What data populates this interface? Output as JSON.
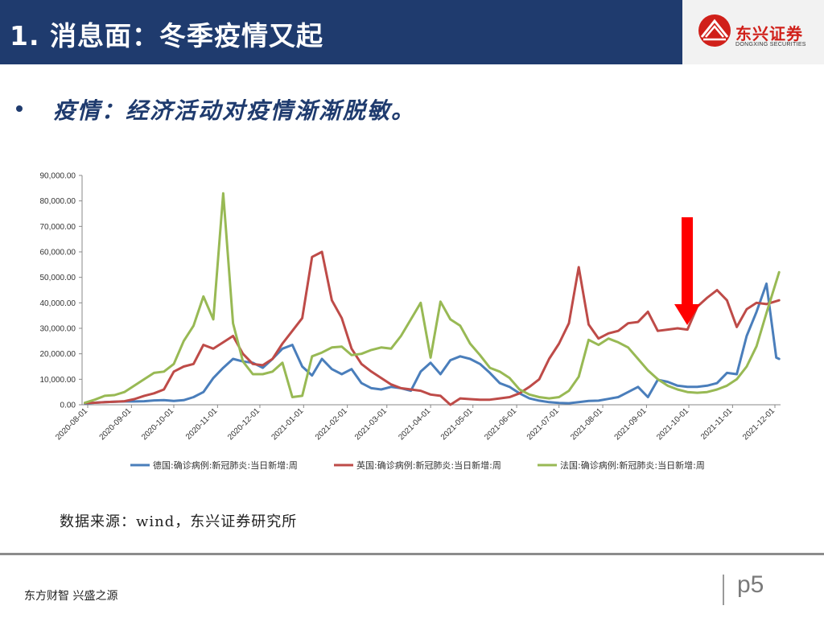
{
  "header": {
    "title": "1. 消息面：冬季疫情又起",
    "logo_cn": "东兴证券",
    "logo_en": "DONGXING SECURITIES"
  },
  "bullet": {
    "text": "疫情：经济活动对疫情渐渐脱敏。"
  },
  "source": "数据来源：wind，东兴证券研究所",
  "footer": {
    "slogan": "东方财智 兴盛之源",
    "page": "p5"
  },
  "colors": {
    "header_bg": "#1f3b6e",
    "germany": "#4a7ebb",
    "uk": "#be4b48",
    "france": "#98b954",
    "arrow": "#ff0000",
    "logo_red": "#d0201a"
  },
  "chart_data": {
    "type": "line",
    "ylim": [
      0,
      90000
    ],
    "yticks": [
      0,
      10000,
      20000,
      30000,
      40000,
      50000,
      60000,
      70000,
      80000,
      90000
    ],
    "ytick_labels": [
      "0.00",
      "10,000.00",
      "20,000.00",
      "30,000.00",
      "40,000.00",
      "50,000.00",
      "60,000.00",
      "70,000.00",
      "80,000.00",
      "90,000.00"
    ],
    "xtick_labels": [
      "2020-08-01",
      "2020-09-01",
      "2020-10-01",
      "2020-11-01",
      "2020-12-01",
      "2021-01-01",
      "2021-02-01",
      "2021-03-01",
      "2021-04-01",
      "2021-05-01",
      "2021-06-01",
      "2021-07-01",
      "2021-08-01",
      "2021-09-01",
      "2021-10-01",
      "2021-11-01",
      "2021-12-01"
    ],
    "x_range": [
      "2020-07-28",
      "2021-12-05"
    ],
    "legend_position": "bottom",
    "annotation": {
      "type": "arrow",
      "date": "2021-10-01",
      "direction": "down",
      "color": "#ff0000"
    },
    "series": [
      {
        "name": "德国:确诊病例:新冠肺炎:当日新增:周",
        "color": "#4a7ebb",
        "points": [
          [
            "2020-07-30",
            500
          ],
          [
            "2020-08-06",
            800
          ],
          [
            "2020-08-13",
            1000
          ],
          [
            "2020-08-20",
            1200
          ],
          [
            "2020-08-27",
            1300
          ],
          [
            "2020-09-03",
            1300
          ],
          [
            "2020-09-10",
            1400
          ],
          [
            "2020-09-17",
            1700
          ],
          [
            "2020-09-24",
            1800
          ],
          [
            "2020-10-01",
            1500
          ],
          [
            "2020-10-08",
            1800
          ],
          [
            "2020-10-15",
            3000
          ],
          [
            "2020-10-22",
            5000
          ],
          [
            "2020-10-29",
            10500
          ],
          [
            "2020-11-05",
            14500
          ],
          [
            "2020-11-12",
            18000
          ],
          [
            "2020-11-19",
            17000
          ],
          [
            "2020-11-26",
            16500
          ],
          [
            "2020-12-03",
            14500
          ],
          [
            "2020-12-10",
            18000
          ],
          [
            "2020-12-17",
            22000
          ],
          [
            "2020-12-24",
            23500
          ],
          [
            "2020-12-31",
            15000
          ],
          [
            "2021-01-07",
            11500
          ],
          [
            "2021-01-14",
            18000
          ],
          [
            "2021-01-21",
            14000
          ],
          [
            "2021-01-28",
            12000
          ],
          [
            "2021-02-04",
            14000
          ],
          [
            "2021-02-11",
            8500
          ],
          [
            "2021-02-18",
            6500
          ],
          [
            "2021-02-25",
            6000
          ],
          [
            "2021-03-04",
            7000
          ],
          [
            "2021-03-11",
            6500
          ],
          [
            "2021-03-18",
            5500
          ],
          [
            "2021-03-25",
            13000
          ],
          [
            "2021-04-01",
            16500
          ],
          [
            "2021-04-08",
            12000
          ],
          [
            "2021-04-15",
            17500
          ],
          [
            "2021-04-22",
            19000
          ],
          [
            "2021-04-29",
            18000
          ],
          [
            "2021-05-06",
            16000
          ],
          [
            "2021-05-13",
            12500
          ],
          [
            "2021-05-20",
            8500
          ],
          [
            "2021-05-27",
            7000
          ],
          [
            "2021-06-03",
            4500
          ],
          [
            "2021-06-10",
            2500
          ],
          [
            "2021-06-17",
            1600
          ],
          [
            "2021-06-24",
            1000
          ],
          [
            "2021-07-01",
            700
          ],
          [
            "2021-07-08",
            600
          ],
          [
            "2021-07-15",
            1000
          ],
          [
            "2021-07-22",
            1500
          ],
          [
            "2021-07-29",
            1600
          ],
          [
            "2021-08-05",
            2300
          ],
          [
            "2021-08-12",
            3000
          ],
          [
            "2021-08-19",
            5000
          ],
          [
            "2021-08-26",
            7000
          ],
          [
            "2021-09-02",
            3000
          ],
          [
            "2021-09-09",
            9800
          ],
          [
            "2021-09-16",
            9000
          ],
          [
            "2021-09-23",
            7500
          ],
          [
            "2021-09-30",
            7000
          ],
          [
            "2021-10-07",
            7000
          ],
          [
            "2021-10-14",
            7500
          ],
          [
            "2021-10-21",
            8500
          ],
          [
            "2021-10-28",
            12500
          ],
          [
            "2021-11-04",
            12000
          ],
          [
            "2021-11-11",
            27000
          ],
          [
            "2021-11-18",
            36500
          ],
          [
            "2021-11-25",
            47500
          ],
          [
            "2021-12-02",
            18500
          ],
          [
            "2021-12-04",
            18000
          ]
        ]
      },
      {
        "name": "英国:确诊病例:新冠肺炎:当日新增:周",
        "color": "#be4b48",
        "points": [
          [
            "2020-07-30",
            700
          ],
          [
            "2020-08-06",
            800
          ],
          [
            "2020-08-13",
            1000
          ],
          [
            "2020-08-20",
            1200
          ],
          [
            "2020-08-27",
            1400
          ],
          [
            "2020-09-03",
            2200
          ],
          [
            "2020-09-10",
            3500
          ],
          [
            "2020-09-17",
            4500
          ],
          [
            "2020-09-24",
            6000
          ],
          [
            "2020-10-01",
            13000
          ],
          [
            "2020-10-08",
            15000
          ],
          [
            "2020-10-15",
            16000
          ],
          [
            "2020-10-22",
            23500
          ],
          [
            "2020-10-29",
            22000
          ],
          [
            "2020-11-05",
            24500
          ],
          [
            "2020-11-12",
            27000
          ],
          [
            "2020-11-19",
            20000
          ],
          [
            "2020-11-26",
            16000
          ],
          [
            "2020-12-03",
            15500
          ],
          [
            "2020-12-10",
            18000
          ],
          [
            "2020-12-17",
            24000
          ],
          [
            "2020-12-24",
            29000
          ],
          [
            "2020-12-31",
            34000
          ],
          [
            "2021-01-07",
            58000
          ],
          [
            "2021-01-14",
            60000
          ],
          [
            "2021-01-21",
            41000
          ],
          [
            "2021-01-28",
            34000
          ],
          [
            "2021-02-04",
            22000
          ],
          [
            "2021-02-11",
            16000
          ],
          [
            "2021-02-18",
            13000
          ],
          [
            "2021-02-25",
            10500
          ],
          [
            "2021-03-04",
            8000
          ],
          [
            "2021-03-11",
            6500
          ],
          [
            "2021-03-18",
            6000
          ],
          [
            "2021-03-25",
            5500
          ],
          [
            "2021-04-01",
            4000
          ],
          [
            "2021-04-08",
            3500
          ],
          [
            "2021-04-15",
            0
          ],
          [
            "2021-04-22",
            2500
          ],
          [
            "2021-04-29",
            2200
          ],
          [
            "2021-05-06",
            2000
          ],
          [
            "2021-05-13",
            2000
          ],
          [
            "2021-05-20",
            2500
          ],
          [
            "2021-05-27",
            3000
          ],
          [
            "2021-06-03",
            4500
          ],
          [
            "2021-06-10",
            7000
          ],
          [
            "2021-06-17",
            10000
          ],
          [
            "2021-06-24",
            18000
          ],
          [
            "2021-07-01",
            24000
          ],
          [
            "2021-07-08",
            32000
          ],
          [
            "2021-07-15",
            54000
          ],
          [
            "2021-07-22",
            31500
          ],
          [
            "2021-07-29",
            26000
          ],
          [
            "2021-08-05",
            28000
          ],
          [
            "2021-08-12",
            29000
          ],
          [
            "2021-08-19",
            32000
          ],
          [
            "2021-08-26",
            32500
          ],
          [
            "2021-09-02",
            36500
          ],
          [
            "2021-09-09",
            29000
          ],
          [
            "2021-09-16",
            29500
          ],
          [
            "2021-09-23",
            30000
          ],
          [
            "2021-09-30",
            29500
          ],
          [
            "2021-10-07",
            38500
          ],
          [
            "2021-10-14",
            42000
          ],
          [
            "2021-10-21",
            45000
          ],
          [
            "2021-10-28",
            41000
          ],
          [
            "2021-11-04",
            30500
          ],
          [
            "2021-11-11",
            37500
          ],
          [
            "2021-11-18",
            40000
          ],
          [
            "2021-11-25",
            39500
          ],
          [
            "2021-12-04",
            41000
          ]
        ]
      },
      {
        "name": "法国:确诊病例:新冠肺炎:当日新增:周",
        "color": "#98b954",
        "points": [
          [
            "2020-07-30",
            800
          ],
          [
            "2020-08-06",
            2000
          ],
          [
            "2020-08-13",
            3500
          ],
          [
            "2020-08-20",
            3800
          ],
          [
            "2020-08-27",
            5000
          ],
          [
            "2020-09-03",
            7500
          ],
          [
            "2020-09-10",
            10000
          ],
          [
            "2020-09-17",
            12500
          ],
          [
            "2020-09-24",
            13000
          ],
          [
            "2020-10-01",
            16000
          ],
          [
            "2020-10-08",
            25000
          ],
          [
            "2020-10-15",
            31000
          ],
          [
            "2020-10-22",
            42500
          ],
          [
            "2020-10-29",
            33500
          ],
          [
            "2020-11-05",
            83000
          ],
          [
            "2020-11-12",
            32000
          ],
          [
            "2020-11-19",
            17000
          ],
          [
            "2020-11-26",
            12000
          ],
          [
            "2020-12-03",
            12000
          ],
          [
            "2020-12-10",
            13000
          ],
          [
            "2020-12-17",
            16500
          ],
          [
            "2020-12-24",
            3000
          ],
          [
            "2020-12-31",
            3500
          ],
          [
            "2021-01-07",
            19000
          ],
          [
            "2021-01-14",
            20500
          ],
          [
            "2021-01-21",
            22500
          ],
          [
            "2021-01-28",
            22800
          ],
          [
            "2021-02-04",
            19500
          ],
          [
            "2021-02-11",
            20000
          ],
          [
            "2021-02-18",
            21500
          ],
          [
            "2021-02-25",
            22500
          ],
          [
            "2021-03-04",
            22000
          ],
          [
            "2021-03-11",
            27000
          ],
          [
            "2021-03-18",
            33500
          ],
          [
            "2021-03-25",
            40000
          ],
          [
            "2021-04-01",
            18500
          ],
          [
            "2021-04-08",
            40500
          ],
          [
            "2021-04-15",
            33500
          ],
          [
            "2021-04-22",
            31000
          ],
          [
            "2021-04-29",
            24000
          ],
          [
            "2021-05-06",
            19500
          ],
          [
            "2021-05-13",
            14500
          ],
          [
            "2021-05-20",
            13000
          ],
          [
            "2021-05-27",
            10500
          ],
          [
            "2021-06-03",
            6000
          ],
          [
            "2021-06-10",
            4000
          ],
          [
            "2021-06-17",
            3000
          ],
          [
            "2021-06-24",
            2500
          ],
          [
            "2021-07-01",
            3000
          ],
          [
            "2021-07-08",
            5500
          ],
          [
            "2021-07-15",
            11000
          ],
          [
            "2021-07-22",
            25500
          ],
          [
            "2021-07-29",
            23500
          ],
          [
            "2021-08-05",
            26000
          ],
          [
            "2021-08-12",
            24500
          ],
          [
            "2021-08-19",
            22500
          ],
          [
            "2021-08-26",
            18000
          ],
          [
            "2021-09-02",
            13500
          ],
          [
            "2021-09-09",
            10000
          ],
          [
            "2021-09-16",
            7500
          ],
          [
            "2021-09-23",
            6000
          ],
          [
            "2021-09-30",
            5000
          ],
          [
            "2021-10-07",
            4700
          ],
          [
            "2021-10-14",
            5000
          ],
          [
            "2021-10-21",
            6000
          ],
          [
            "2021-10-28",
            7500
          ],
          [
            "2021-11-04",
            10000
          ],
          [
            "2021-11-11",
            15000
          ],
          [
            "2021-11-18",
            23000
          ],
          [
            "2021-11-25",
            36000
          ],
          [
            "2021-12-04",
            52000
          ]
        ]
      }
    ]
  }
}
